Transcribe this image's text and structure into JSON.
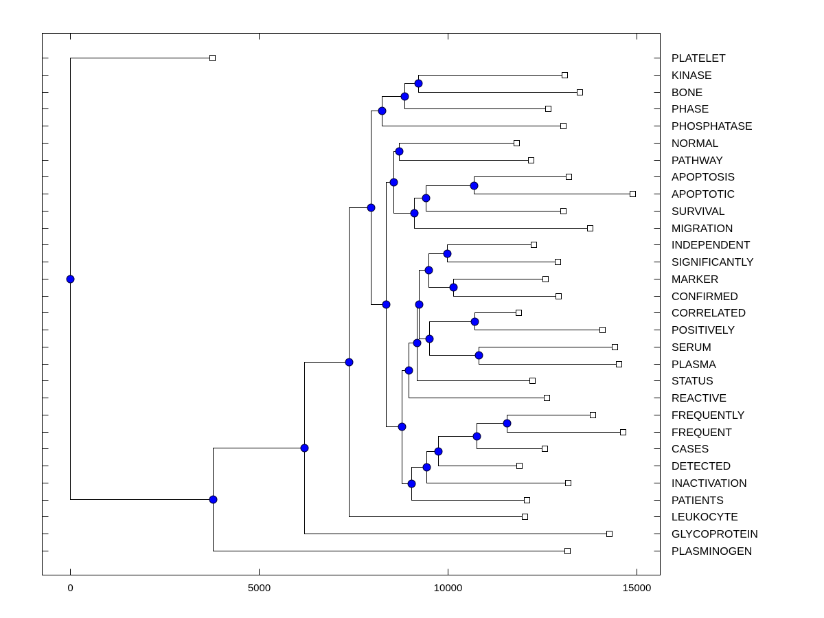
{
  "chart_data": {
    "type": "dendrogram",
    "title": "",
    "xlabel": "",
    "ylabel": "",
    "xlim": [
      -750,
      15600
    ],
    "x_ticks": [
      0,
      5000,
      10000,
      15000
    ],
    "x_tick_labels": [
      "0",
      "5000",
      "10000",
      "15000"
    ],
    "grid": false,
    "leaf_marker": "white-square",
    "node_marker": "blue-circle",
    "colors": {
      "node_fill": "#0000ff",
      "line": "#000000",
      "leaf_fill": "#ffffff"
    },
    "leaves": [
      {
        "label": "PLATELET",
        "x": 3760
      },
      {
        "label": "KINASE",
        "x": 13090
      },
      {
        "label": "BONE",
        "x": 13490
      },
      {
        "label": "PHASE",
        "x": 12650
      },
      {
        "label": "PHOSPHATASE",
        "x": 13050
      },
      {
        "label": "NORMAL",
        "x": 11820
      },
      {
        "label": "PATHWAY",
        "x": 12200
      },
      {
        "label": "APOPTOSIS",
        "x": 13200
      },
      {
        "label": "APOPTOTIC",
        "x": 14890
      },
      {
        "label": "SURVIVAL",
        "x": 13050
      },
      {
        "label": "MIGRATION",
        "x": 13760
      },
      {
        "label": "INDEPENDENT",
        "x": 12270
      },
      {
        "label": "SIGNIFICANTLY",
        "x": 12910
      },
      {
        "label": "MARKER",
        "x": 12580
      },
      {
        "label": "CONFIRMED",
        "x": 12930
      },
      {
        "label": "CORRELATED",
        "x": 11870
      },
      {
        "label": "POSITIVELY",
        "x": 14090
      },
      {
        "label": "SERUM",
        "x": 14420
      },
      {
        "label": "PLASMA",
        "x": 14530
      },
      {
        "label": "STATUS",
        "x": 12240
      },
      {
        "label": "REACTIVE",
        "x": 12620
      },
      {
        "label": "FREQUENTLY",
        "x": 13840
      },
      {
        "label": "FREQUENT",
        "x": 14640
      },
      {
        "label": "CASES",
        "x": 12560
      },
      {
        "label": "DETECTED",
        "x": 11890
      },
      {
        "label": "INACTIVATION",
        "x": 13180
      },
      {
        "label": "PATIENTS",
        "x": 12090
      },
      {
        "label": "LEUKOCYTE",
        "x": 12040
      },
      {
        "label": "GLYCOPROTEIN",
        "x": 14270
      },
      {
        "label": "PLASMINOGEN",
        "x": 13160
      }
    ],
    "nodes": [
      {
        "id": "n_kin_bone",
        "x": 9220,
        "children": [
          "L1",
          "L2"
        ]
      },
      {
        "id": "n_phase",
        "x": 8850,
        "children": [
          "n_kin_bone",
          "L3"
        ]
      },
      {
        "id": "n_phosph",
        "x": 8250,
        "children": [
          "n_phase",
          "L4"
        ]
      },
      {
        "id": "n_norm_path",
        "x": 8710,
        "children": [
          "L5",
          "L6"
        ]
      },
      {
        "id": "n_apop",
        "x": 10690,
        "children": [
          "L7",
          "L8"
        ]
      },
      {
        "id": "n_surv",
        "x": 9420,
        "children": [
          "n_apop",
          "L9"
        ]
      },
      {
        "id": "n_migr",
        "x": 9110,
        "children": [
          "n_surv",
          "L10"
        ]
      },
      {
        "id": "n_path_grp",
        "x": 8560,
        "children": [
          "n_norm_path",
          "n_migr"
        ]
      },
      {
        "id": "n_indep_sig",
        "x": 9980,
        "children": [
          "L11",
          "L12"
        ]
      },
      {
        "id": "n_mark_conf",
        "x": 10150,
        "children": [
          "L13",
          "L14"
        ]
      },
      {
        "id": "n_ind_mark",
        "x": 9490,
        "children": [
          "n_indep_sig",
          "n_mark_conf"
        ]
      },
      {
        "id": "n_corr_pos",
        "x": 10710,
        "children": [
          "L15",
          "L16"
        ]
      },
      {
        "id": "n_serum_plasma",
        "x": 10820,
        "children": [
          "L17",
          "L18"
        ]
      },
      {
        "id": "n_corr_serum",
        "x": 9510,
        "children": [
          "n_corr_pos",
          "n_serum_plasma"
        ]
      },
      {
        "id": "n_mid",
        "x": 9240,
        "children": [
          "n_ind_mark",
          "n_corr_serum"
        ]
      },
      {
        "id": "n_status",
        "x": 9180,
        "children": [
          "n_mid",
          "L19"
        ]
      },
      {
        "id": "n_reactive",
        "x": 8960,
        "children": [
          "n_status",
          "L20"
        ]
      },
      {
        "id": "n_freq",
        "x": 11560,
        "children": [
          "L21",
          "L22"
        ]
      },
      {
        "id": "n_cases",
        "x": 10760,
        "children": [
          "n_freq",
          "L23"
        ]
      },
      {
        "id": "n_detected",
        "x": 9750,
        "children": [
          "n_cases",
          "L24"
        ]
      },
      {
        "id": "n_inact",
        "x": 9440,
        "children": [
          "n_detected",
          "L25"
        ]
      },
      {
        "id": "n_patients",
        "x": 9040,
        "children": [
          "n_inact",
          "L26"
        ]
      },
      {
        "id": "n_lower",
        "x": 8780,
        "children": [
          "n_reactive",
          "n_patients"
        ]
      },
      {
        "id": "n_mid_big",
        "x": 8360,
        "children": [
          "n_path_grp",
          "n_lower"
        ]
      },
      {
        "id": "n_top_big",
        "x": 7960,
        "children": [
          "n_phosph",
          "n_mid_big"
        ]
      },
      {
        "id": "n_leuko",
        "x": 7380,
        "children": [
          "n_top_big",
          "L27"
        ]
      },
      {
        "id": "n_glyco",
        "x": 6200,
        "children": [
          "n_leuko",
          "L28"
        ]
      },
      {
        "id": "n_plasmin",
        "x": 3780,
        "children": [
          "n_glyco",
          "L29"
        ]
      },
      {
        "id": "n_root",
        "x": 0,
        "children": [
          "L0",
          "n_plasmin"
        ]
      }
    ]
  }
}
